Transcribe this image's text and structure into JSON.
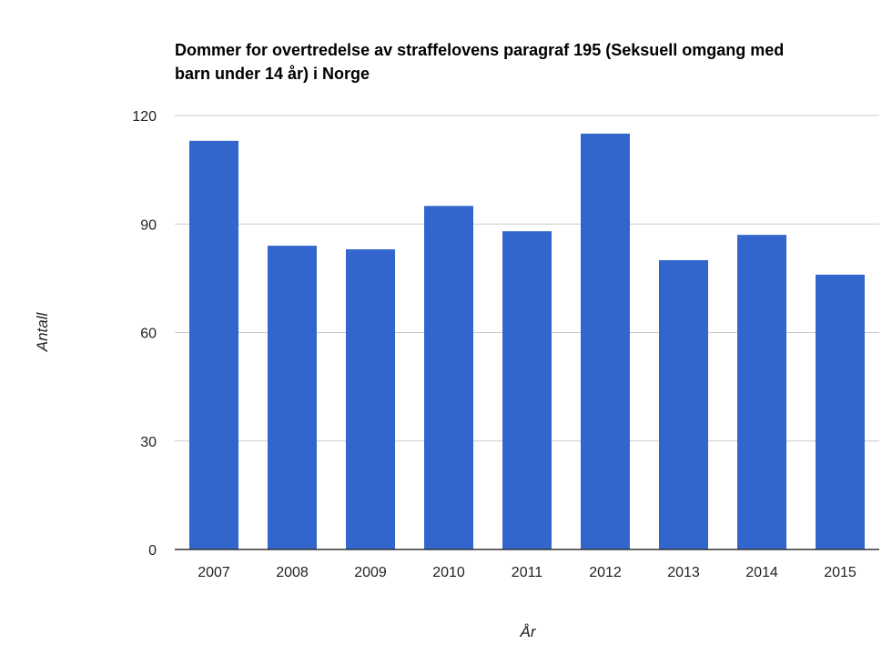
{
  "chart_data": {
    "type": "bar",
    "title_lines": [
      "Dommer for overtredelse av straffelovens paragraf 195 (Seksuell omgang med",
      "barn under 14 år) i Norge"
    ],
    "xlabel": "År",
    "ylabel": "Antall",
    "categories": [
      "2007",
      "2008",
      "2009",
      "2010",
      "2011",
      "2012",
      "2013",
      "2014",
      "2015"
    ],
    "values": [
      113,
      84,
      83,
      95,
      88,
      115,
      80,
      87,
      76
    ],
    "ylim": [
      0,
      120
    ],
    "yticks": [
      0,
      30,
      60,
      90,
      120
    ],
    "grid": true,
    "legend": "none",
    "bar_color": "#3366cc",
    "grid_color": "#cccccc",
    "axis_color": "#333333"
  }
}
